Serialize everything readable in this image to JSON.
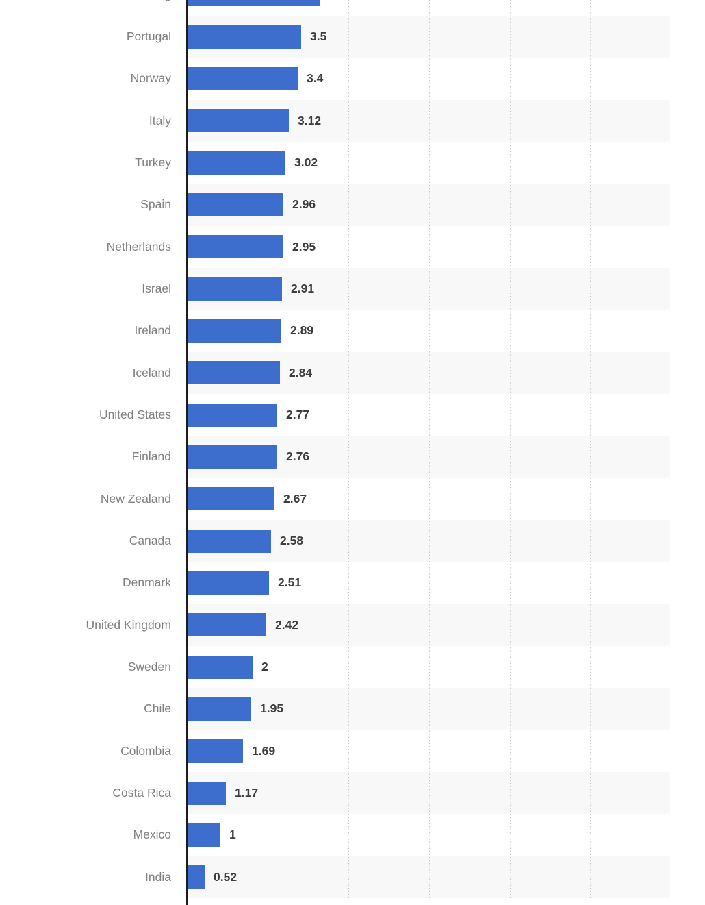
{
  "page": {
    "background": "#ffffff"
  },
  "chart_data": {
    "type": "bar",
    "orientation": "horizontal",
    "categories": [
      "Portugal",
      "Norway",
      "Italy",
      "Turkey",
      "Spain",
      "Netherlands",
      "Israel",
      "Ireland",
      "Iceland",
      "United States",
      "Finland",
      "New Zealand",
      "Canada",
      "Denmark",
      "United Kingdom",
      "Sweden",
      "Chile",
      "Colombia",
      "Costa Rica",
      "Mexico",
      "India"
    ],
    "values": [
      3.5,
      3.4,
      3.12,
      3.02,
      2.96,
      2.95,
      2.91,
      2.89,
      2.84,
      2.77,
      2.76,
      2.67,
      2.58,
      2.51,
      2.42,
      2,
      1.95,
      1.69,
      1.17,
      1,
      0.52
    ],
    "value_labels": [
      "3.5",
      "3.4",
      "3.12",
      "3.02",
      "2.96",
      "2.95",
      "2.91",
      "2.89",
      "2.84",
      "2.77",
      "2.76",
      "2.67",
      "2.58",
      "2.51",
      "2.42",
      "2",
      "1.95",
      "1.69",
      "1.17",
      "1",
      "0.52"
    ],
    "top_partial_row": {
      "visible_label_fragment": "g",
      "estimated_value": 4.1,
      "value_label_visible": false
    },
    "xlim": [
      0,
      15
    ],
    "gridlines_at": [
      2.5,
      5,
      7.5,
      10,
      12.5,
      15
    ],
    "grid": "vertical-dotted",
    "legend": "none",
    "row_striping": "alternate-from-first-row",
    "colors": {
      "bar": "#3d6ecd",
      "row_stripe": "#f8f8f8",
      "gridline": "#c9c9c9",
      "axis_line": "#1c1c1c",
      "category_label": "#808080",
      "value_label": "#3d3d3d",
      "top_border": "#d9d9d9",
      "background": "#ffffff"
    }
  }
}
